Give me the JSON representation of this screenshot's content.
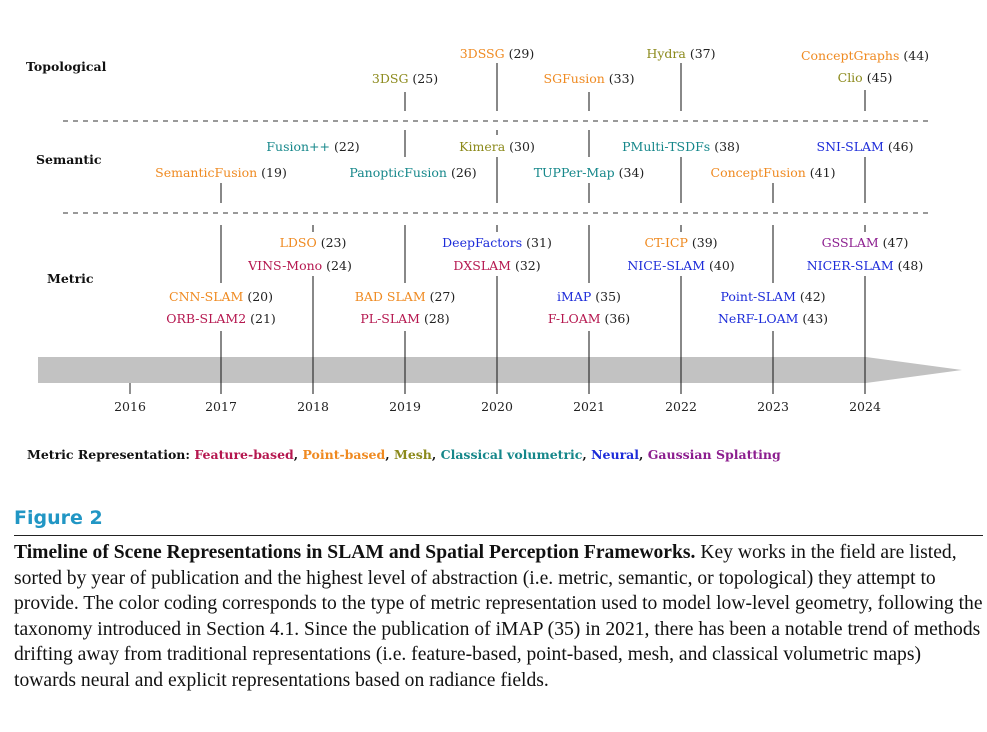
{
  "figure": {
    "levels": {
      "topological": "Topological",
      "semantic": "Semantic",
      "metric": "Metric"
    },
    "years": [
      "2016",
      "2017",
      "2018",
      "2019",
      "2020",
      "2021",
      "2022",
      "2023",
      "2024"
    ],
    "colors": {
      "feature": "#b5174f",
      "point": "#ef8a21",
      "mesh": "#8c8a1c",
      "volumetric": "#15878a",
      "neural": "#1c2bd9",
      "gaussian": "#8c1e8f"
    },
    "entries": {
      "dsg3": "3DSG",
      "dsg3_ref": " (25)",
      "dssg3": "3DSSG",
      "dssg3_ref": " (29)",
      "sgfusion": "SGFusion",
      "sgfusion_ref": " (33)",
      "hydra": "Hydra",
      "hydra_ref": " (37)",
      "conceptgraphs": "ConceptGraphs",
      "conceptgraphs_ref": " (44)",
      "clio": "Clio",
      "clio_ref": " (45)",
      "fusionpp": "Fusion++",
      "fusionpp_ref": " (22)",
      "semanticfusion": "SemanticFusion",
      "semanticfusion_ref": " (19)",
      "panopticfusion": "PanopticFusion",
      "panopticfusion_ref": " (26)",
      "kimera": "Kimera",
      "kimera_ref": " (30)",
      "tupper": "TUPPer-Map",
      "tupper_ref": " (34)",
      "pmulti": "PMulti-TSDFs",
      "pmulti_ref": " (38)",
      "conceptfusion": "ConceptFusion",
      "conceptfusion_ref": " (41)",
      "snislam": "SNI-SLAM",
      "snislam_ref": " (46)",
      "ldso": "LDSO",
      "ldso_ref": " (23)",
      "vinsmono": "VINS-Mono",
      "vinsmono_ref": " (24)",
      "deepfactors": "DeepFactors",
      "deepfactors_ref": " (31)",
      "dxslam": "DXSLAM",
      "dxslam_ref": " (32)",
      "cticp": "CT-ICP",
      "cticp_ref": " (39)",
      "niceslam": "NICE-SLAM",
      "niceslam_ref": " (40)",
      "gsslam": "GSSLAM",
      "gsslam_ref": " (47)",
      "nicerslam": "NICER-SLAM",
      "nicerslam_ref": " (48)",
      "cnnslam": "CNN-SLAM",
      "cnnslam_ref": " (20)",
      "orbslam2": "ORB-SLAM2",
      "orbslam2_ref": " (21)",
      "badslam": "BAD SLAM",
      "badslam_ref": " (27)",
      "plslam": "PL-SLAM",
      "plslam_ref": " (28)",
      "imap": "iMAP",
      "imap_ref": " (35)",
      "floam": "F-LOAM",
      "floam_ref": " (36)",
      "pointslam": "Point-SLAM",
      "pointslam_ref": " (42)",
      "nerfloam": "NeRF-LOAM",
      "nerfloam_ref": " (43)"
    },
    "legend": {
      "title": "Metric Representation: ",
      "feature": "Feature-based",
      "point": "Point-based",
      "mesh": "Mesh",
      "volumetric": "Classical volumetric",
      "neural": "Neural",
      "gaussian": "Gaussian Splatting",
      "sep": ", "
    }
  },
  "caption": {
    "label": "Figure 2",
    "title": "Timeline of Scene Representations in SLAM and Spatial Perception Frameworks.",
    "body": " Key works in the field are listed, sorted by year of publication and the highest level of abstraction (i.e. metric, semantic, or topological) they attempt to provide. The color coding corresponds to the type of metric representation used to model low-level geometry, following the taxonomy introduced in Section 4.1. Since the publication of iMAP (35) in 2021, there has been a notable trend of methods drifting away from traditional representations (i.e. feature-based, point-based, mesh, and classical volumetric maps) towards neural and explicit representations based on radiance fields."
  }
}
